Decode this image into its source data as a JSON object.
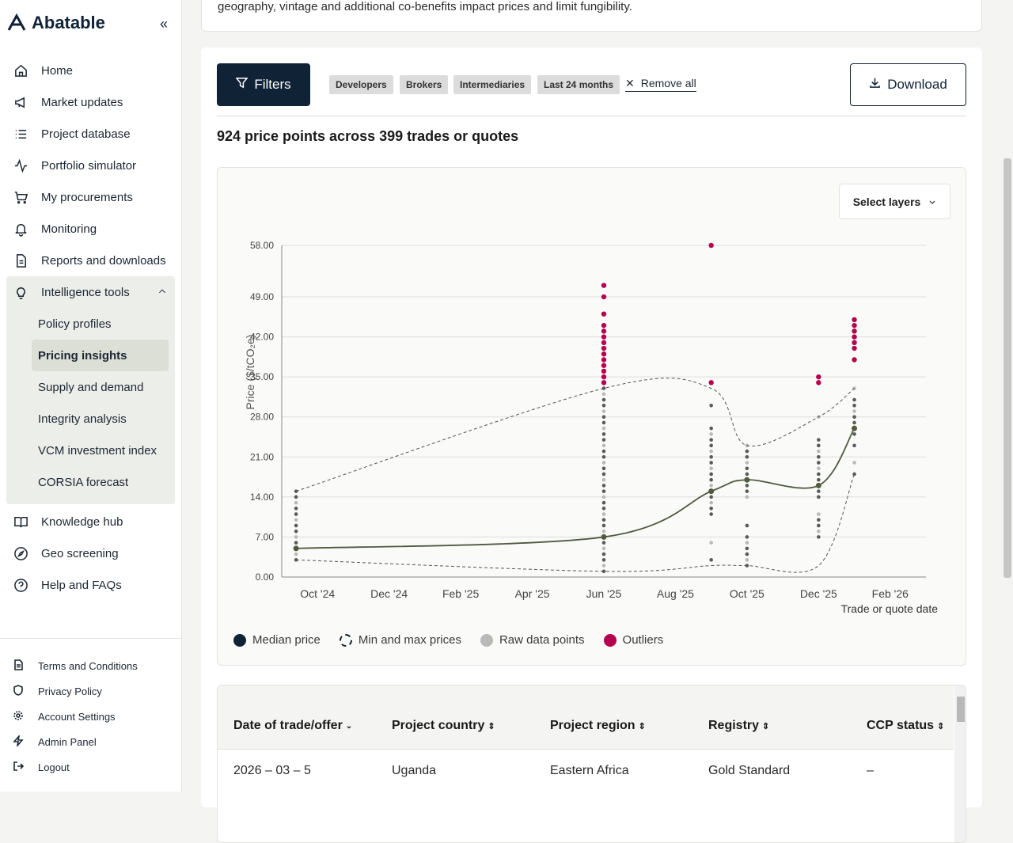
{
  "app": {
    "name": "Abatable"
  },
  "sidebar": {
    "items": [
      {
        "label": "Home",
        "icon": "home-icon"
      },
      {
        "label": "Market updates",
        "icon": "megaphone-icon"
      },
      {
        "label": "Project database",
        "icon": "list-icon"
      },
      {
        "label": "Portfolio simulator",
        "icon": "activity-icon"
      },
      {
        "label": "My procurements",
        "icon": "cart-icon"
      },
      {
        "label": "Monitoring",
        "icon": "bell-icon"
      },
      {
        "label": "Reports and downloads",
        "icon": "document-icon"
      }
    ],
    "group": {
      "label": "Intelligence tools",
      "icon": "lightbulb-icon",
      "children": [
        "Policy profiles",
        "Pricing insights",
        "Supply and demand",
        "Integrity analysis",
        "VCM investment index",
        "CORSIA forecast"
      ],
      "active": "Pricing insights"
    },
    "items_after": [
      {
        "label": "Knowledge hub",
        "icon": "book-icon"
      },
      {
        "label": "Geo screening",
        "icon": "compass-icon"
      },
      {
        "label": "Help and FAQs",
        "icon": "help-icon"
      }
    ],
    "bottom": [
      {
        "label": "Terms and Conditions",
        "icon": "document-icon"
      },
      {
        "label": "Privacy Policy",
        "icon": "shield-icon"
      },
      {
        "label": "Account Settings",
        "icon": "gear-icon"
      },
      {
        "label": "Admin Panel",
        "icon": "bolt-icon"
      },
      {
        "label": "Logout",
        "icon": "logout-icon"
      }
    ]
  },
  "top_text": "geography, vintage and additional co-benefits impact prices and limit fungibility.",
  "toolbar": {
    "filters_label": "Filters",
    "chips": [
      "Developers",
      "Brokers",
      "Intermediaries",
      "Last 24 months"
    ],
    "remove_all_label": "Remove all",
    "download_label": "Download"
  },
  "summary": "924 price points across 399 trades or quotes",
  "select_layers_label": "Select layers",
  "legend": {
    "median": "Median price",
    "minmax": "Min and max prices",
    "raw": "Raw data points",
    "outliers": "Outliers"
  },
  "colors": {
    "navy": "#0f2236",
    "median": "#4f5a3e",
    "outlier": "#b4004e",
    "raw": "#b9b9b9",
    "raw_dark": "#5a5a5a"
  },
  "chart_data": {
    "type": "scatter",
    "title": "",
    "xlabel": "Trade or quote date",
    "ylabel": "Price ($/tCO₂e)",
    "ylim": [
      0,
      58
    ],
    "yticks": [
      "58.00",
      "49.00",
      "42.00",
      "35.00",
      "28.00",
      "21.00",
      "14.00",
      "7.00",
      "0.00"
    ],
    "ytick_values": [
      58,
      49,
      42,
      35,
      28,
      21,
      14,
      7,
      0
    ],
    "xticks": [
      "Oct '24",
      "Dec '24",
      "Feb '25",
      "Apr '25",
      "Jun '25",
      "Aug '25",
      "Oct '25",
      "Dec '25",
      "Feb '26"
    ],
    "xlim": [
      0,
      18
    ],
    "xtick_values": [
      1,
      3,
      5,
      7,
      9,
      11,
      13,
      15,
      17
    ],
    "dates": [
      0.4,
      9,
      12,
      13,
      15,
      16
    ],
    "median": [
      5,
      7,
      15,
      17,
      16,
      26
    ],
    "max": [
      15,
      33,
      33,
      23,
      28,
      33
    ],
    "min": [
      3,
      1,
      2,
      2,
      2,
      18
    ],
    "raw": [
      {
        "x": 0.4,
        "values": [
          3,
          4,
          5,
          6,
          7,
          8,
          9,
          10,
          11,
          12,
          13,
          14,
          15
        ]
      },
      {
        "x": 9,
        "values": [
          1,
          2,
          3,
          4,
          5,
          6,
          7,
          8,
          9,
          10,
          11,
          12,
          13,
          14,
          15,
          16,
          17,
          18,
          19,
          20,
          21,
          22,
          23,
          24,
          25,
          26,
          27,
          28,
          29,
          30,
          31,
          32,
          33
        ]
      },
      {
        "x": 12,
        "values": [
          3,
          6,
          11,
          12,
          13,
          14,
          15,
          16,
          17,
          18,
          19,
          20,
          21,
          22,
          23,
          24,
          25,
          26,
          30
        ]
      },
      {
        "x": 13,
        "values": [
          2,
          3,
          4,
          5,
          6,
          7,
          9,
          14,
          15,
          16,
          17,
          18,
          19,
          20,
          21,
          22,
          23
        ]
      },
      {
        "x": 15,
        "values": [
          7,
          8,
          9,
          10,
          11,
          14,
          15,
          16,
          17,
          18,
          19,
          20,
          21,
          22,
          23,
          24,
          28
        ]
      },
      {
        "x": 16,
        "values": [
          18,
          20,
          23,
          25,
          26,
          27,
          28,
          29,
          30,
          31,
          33
        ]
      }
    ],
    "outliers": [
      {
        "x": 9,
        "values": [
          34,
          35,
          36,
          37,
          38,
          39,
          40,
          41,
          42,
          43,
          44,
          46,
          49,
          51
        ]
      },
      {
        "x": 12,
        "values": [
          34,
          58
        ]
      },
      {
        "x": 15,
        "values": [
          34,
          35
        ]
      },
      {
        "x": 16,
        "values": [
          38,
          40,
          41,
          42,
          43,
          44,
          45
        ]
      }
    ]
  },
  "table": {
    "columns": [
      "Date of trade/offer",
      "Project country",
      "Project region",
      "Registry",
      "CCP status"
    ],
    "rows": [
      [
        "2026 – 03 – 5",
        "Uganda",
        "Eastern Africa",
        "Gold Standard",
        "–"
      ]
    ]
  }
}
